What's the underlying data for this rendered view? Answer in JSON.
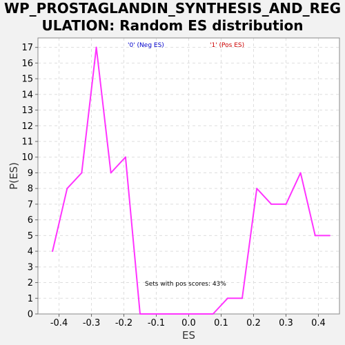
{
  "chart_data": {
    "type": "line",
    "title_line1": "WP_PROSTAGLANDIN_SYNTHESIS_AND_REG",
    "title_line2": "ULATION: Random ES distribution",
    "xlabel": "ES",
    "ylabel": "P(ES)",
    "xlim": [
      -0.465,
      0.465
    ],
    "ylim": [
      0,
      17.6
    ],
    "xticks": [
      -0.4,
      -0.3,
      -0.2,
      -0.1,
      0.0,
      0.1,
      0.2,
      0.3,
      0.4
    ],
    "xtick_labels": [
      "-0.4",
      "-0.3",
      "-0.2",
      "-0.1",
      "0.0",
      "0.1",
      "0.2",
      "0.3",
      "0.4"
    ],
    "yticks": [
      0,
      1,
      2,
      3,
      4,
      5,
      6,
      7,
      8,
      9,
      10,
      11,
      12,
      13,
      14,
      15,
      16,
      17
    ],
    "ytick_labels": [
      "0",
      "1",
      "2",
      "3",
      "4",
      "5",
      "6",
      "7",
      "8",
      "9",
      "10",
      "11",
      "12",
      "13",
      "14",
      "15",
      "16",
      "17"
    ],
    "grid": true,
    "legend": [
      {
        "label": "'0' (Neg ES)",
        "color": "#0000cc"
      },
      {
        "label": "'1' (Pos ES)",
        "color": "#cc0000"
      }
    ],
    "annotation": "Sets with pos scores: 43%",
    "series": [
      {
        "color": "#ff33ff",
        "x": [
          -0.42,
          -0.375,
          -0.33,
          -0.285,
          -0.24,
          -0.195,
          -0.15,
          -0.105,
          -0.06,
          -0.015,
          0.03,
          0.075,
          0.12,
          0.165,
          0.21,
          0.255,
          0.3,
          0.345,
          0.39,
          0.435
        ],
        "y": [
          4,
          8,
          9,
          17,
          9,
          10,
          0,
          0,
          0,
          0,
          0,
          0,
          1,
          1,
          8,
          7,
          7,
          9,
          5,
          5
        ]
      }
    ]
  }
}
